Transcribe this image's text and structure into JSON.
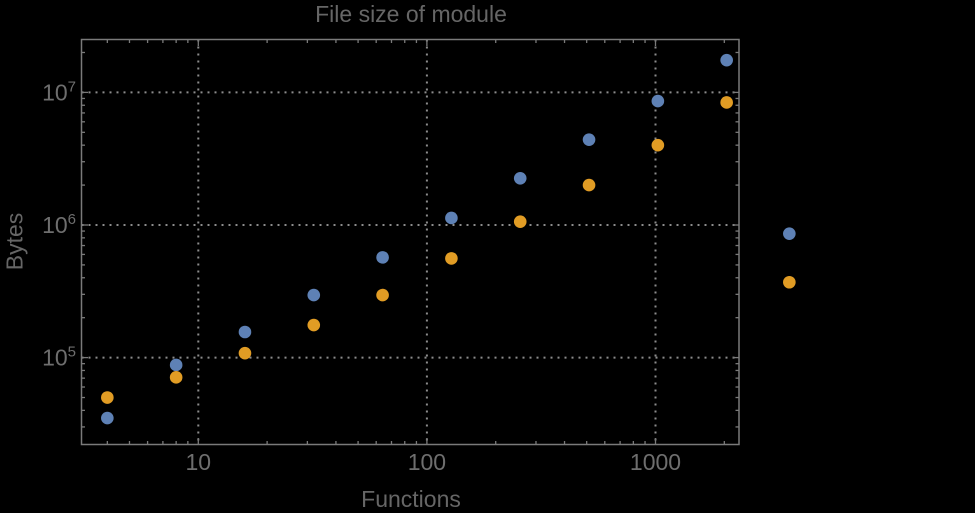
{
  "title": "File size of module",
  "colors": {
    "background": "#000000",
    "frame": "#7a7a7a",
    "gridline": "#8c8c8c",
    "text": "#666666",
    "tick_label": "#6e6e6e",
    "series_blue": "#5E81B5",
    "series_orange": "#E19C24"
  },
  "chart_data": {
    "type": "scatter",
    "title": "File size of module",
    "xlabel": "Functions",
    "ylabel": "Bytes",
    "x_scale": "log",
    "y_scale": "log",
    "xlim": [
      3.1,
      2320
    ],
    "ylim": [
      22500,
      25700000
    ],
    "x_ticks": [
      10,
      100,
      1000
    ],
    "y_ticks": [
      100000,
      1000000,
      10000000
    ],
    "grid": "dotted gridlines at decade ticks, full frame with inward log minor ticks",
    "legend": "none",
    "clip_points_to_frame": false,
    "series": [
      {
        "name": "blue",
        "color": "#5E81B5",
        "points": [
          [
            4,
            35000
          ],
          [
            8,
            88000
          ],
          [
            16,
            156000
          ],
          [
            32,
            296000
          ],
          [
            64,
            570000
          ],
          [
            128,
            1130000
          ],
          [
            256,
            2250000
          ],
          [
            512,
            4400000
          ],
          [
            1024,
            8600000
          ],
          [
            2048,
            17500000
          ],
          [
            3850,
            860000
          ]
        ]
      },
      {
        "name": "orange",
        "color": "#E19C24",
        "points": [
          [
            4,
            50000
          ],
          [
            8,
            71000
          ],
          [
            16,
            108000
          ],
          [
            32,
            176000
          ],
          [
            64,
            296000
          ],
          [
            128,
            560000
          ],
          [
            256,
            1060000
          ],
          [
            512,
            2000000
          ],
          [
            1024,
            4000000
          ],
          [
            2048,
            8400000
          ],
          [
            3850,
            370000
          ]
        ]
      }
    ]
  }
}
